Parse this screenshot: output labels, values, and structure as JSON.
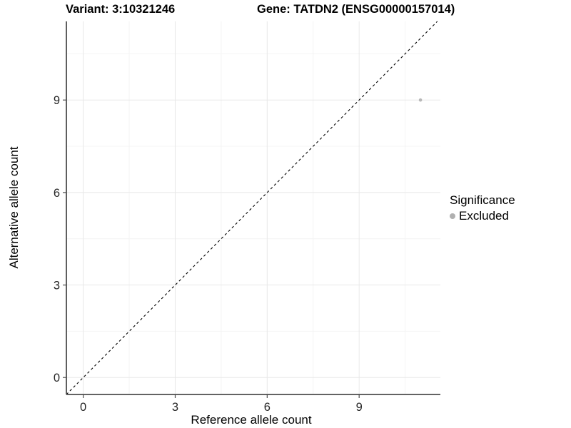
{
  "chart_data": {
    "type": "scatter",
    "title_left": "Variant: 3:10321246",
    "title_right": "Gene: TATDN2 (ENSG00000157014)",
    "xlabel": "Reference allele count",
    "ylabel": "Alternative allele count",
    "xlim": [
      -0.55,
      11.65
    ],
    "ylim": [
      -0.55,
      11.55
    ],
    "x_ticks": [
      0,
      3,
      6,
      9
    ],
    "y_ticks": [
      0,
      3,
      6,
      9
    ],
    "x_minor_ticks": [
      1.5,
      4.5,
      7.5,
      10.5
    ],
    "y_minor_ticks": [
      1.5,
      4.5,
      7.5,
      10.5
    ],
    "grid": "major and minor gridlines, light gray on white panel",
    "reference_line": {
      "kind": "identity y = x",
      "style": "dashed",
      "color": "#000000"
    },
    "series": [
      {
        "name": "Excluded",
        "marker": "circle",
        "color": "#b8b8b8",
        "points": [
          {
            "x": 11,
            "y": 9
          }
        ]
      }
    ],
    "legend": {
      "title": "Significance",
      "position": "right",
      "items": [
        {
          "label": "Excluded",
          "color": "#b0b0b0",
          "marker": "circle"
        }
      ]
    },
    "colors": {
      "axis_line": "#4d4d4d",
      "tick_label": "#262626",
      "grid_major": "#e8e8e8",
      "grid_minor": "#f4f4f4",
      "panel_background": "#ffffff"
    }
  }
}
